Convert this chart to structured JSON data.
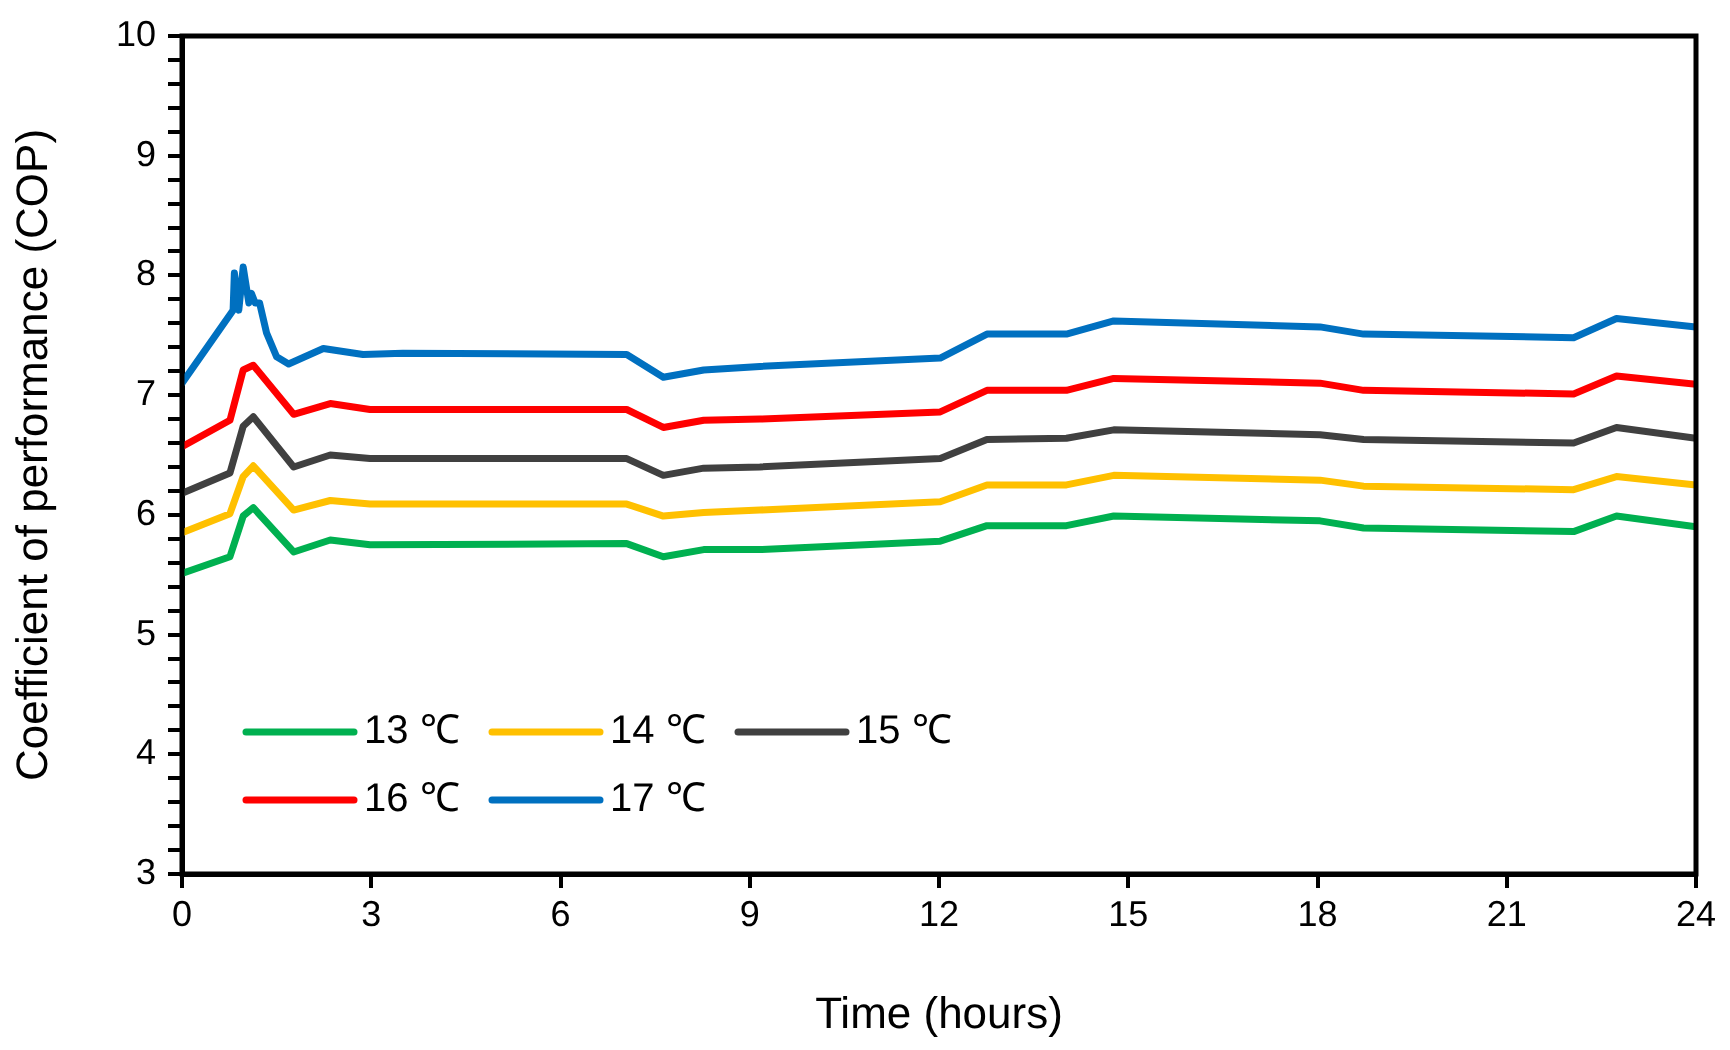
{
  "chart_data": {
    "type": "line",
    "xlabel": "Time (hours)",
    "ylabel": "Coefficient of performance (COP)",
    "x": [
      0,
      0.76,
      0.97,
      1.13,
      1.77,
      2.35,
      2.98,
      7.05,
      7.63,
      8.27,
      9.16,
      12.02,
      12.76,
      14.02,
      14.77,
      18.04,
      18.73,
      22.06,
      22.74,
      24
    ],
    "series": [
      {
        "name": "13 ℃",
        "color": "#00b050",
        "values": [
          5.51,
          5.65,
          5.99,
          6.06,
          5.69,
          5.79,
          5.75,
          5.76,
          5.65,
          5.71,
          5.71,
          5.78,
          5.91,
          5.91,
          5.99,
          5.95,
          5.89,
          5.86,
          5.99,
          5.9
        ]
      },
      {
        "name": "14 ℃",
        "color": "#ffc000",
        "values": [
          5.85,
          6.01,
          6.32,
          6.41,
          6.04,
          6.12,
          6.09,
          6.09,
          5.99,
          6.02,
          6.04,
          6.11,
          6.25,
          6.25,
          6.33,
          6.29,
          6.24,
          6.21,
          6.32,
          6.25
        ]
      },
      {
        "name": "15 ℃",
        "color": "#404040",
        "values": [
          6.18,
          6.35,
          6.74,
          6.82,
          6.4,
          6.5,
          6.47,
          6.47,
          6.33,
          6.39,
          6.4,
          6.47,
          6.63,
          6.64,
          6.71,
          6.67,
          6.63,
          6.6,
          6.73,
          6.64
        ]
      },
      {
        "name": "16 ℃",
        "color": "#ff0000",
        "values": [
          6.57,
          6.79,
          7.21,
          7.25,
          6.84,
          6.93,
          6.88,
          6.88,
          6.73,
          6.79,
          6.8,
          6.86,
          7.04,
          7.04,
          7.14,
          7.1,
          7.04,
          7.01,
          7.16,
          7.09
        ]
      },
      {
        "name": "17 ℃",
        "color": "#0070c0",
        "x": [
          0,
          0.81,
          0.83,
          0.9,
          0.97,
          1.06,
          1.1,
          1.16,
          1.23,
          1.34,
          1.5,
          1.69,
          2.24,
          2.87,
          3.5,
          7.05,
          7.63,
          8.27,
          9.16,
          12.02,
          12.76,
          14.02,
          14.77,
          18.04,
          18.73,
          22.06,
          22.74,
          24
        ],
        "values": [
          7.1,
          7.71,
          8.02,
          7.71,
          8.07,
          7.77,
          7.85,
          7.77,
          7.77,
          7.52,
          7.32,
          7.26,
          7.39,
          7.34,
          7.35,
          7.34,
          7.15,
          7.21,
          7.24,
          7.31,
          7.51,
          7.51,
          7.62,
          7.57,
          7.51,
          7.48,
          7.64,
          7.57
        ]
      }
    ],
    "xlim": [
      0,
      24
    ],
    "xticks": [
      0,
      3,
      6,
      9,
      12,
      15,
      18,
      21,
      24
    ],
    "ylim": [
      3,
      10
    ],
    "yticks": [
      3,
      {
        "value": 3.2,
        "label": null
      },
      {
        "value": 3.4,
        "label": null
      },
      {
        "value": 3.6,
        "label": null
      },
      {
        "value": 3.8,
        "label": null
      },
      4,
      {
        "value": 4.2,
        "label": null
      },
      {
        "value": 4.4,
        "label": null
      },
      {
        "value": 4.6,
        "label": null
      },
      {
        "value": 4.8,
        "label": null
      },
      5,
      {
        "value": 5.2,
        "label": null
      },
      {
        "value": 5.4,
        "label": null
      },
      {
        "value": 5.6,
        "label": null
      },
      {
        "value": 5.8,
        "label": null
      },
      6,
      {
        "value": 6.2,
        "label": null
      },
      {
        "value": 6.4,
        "label": null
      },
      {
        "value": 6.6,
        "label": null
      },
      {
        "value": 6.8,
        "label": null
      },
      7,
      {
        "value": 7.2,
        "label": null
      },
      {
        "value": 7.4,
        "label": null
      },
      {
        "value": 7.6,
        "label": null
      },
      {
        "value": 7.8,
        "label": null
      },
      8,
      {
        "value": 8.2,
        "label": null
      },
      {
        "value": 8.4,
        "label": null
      },
      {
        "value": 8.6,
        "label": null
      },
      {
        "value": 8.8,
        "label": null
      },
      9,
      {
        "value": 9.2,
        "label": null
      },
      {
        "value": 9.4,
        "label": null
      },
      {
        "value": 9.6,
        "label": null
      },
      {
        "value": 9.8,
        "label": null
      },
      10
    ],
    "grid": false,
    "legend": "bottom left",
    "marker": "none",
    "line_style": "solid"
  }
}
